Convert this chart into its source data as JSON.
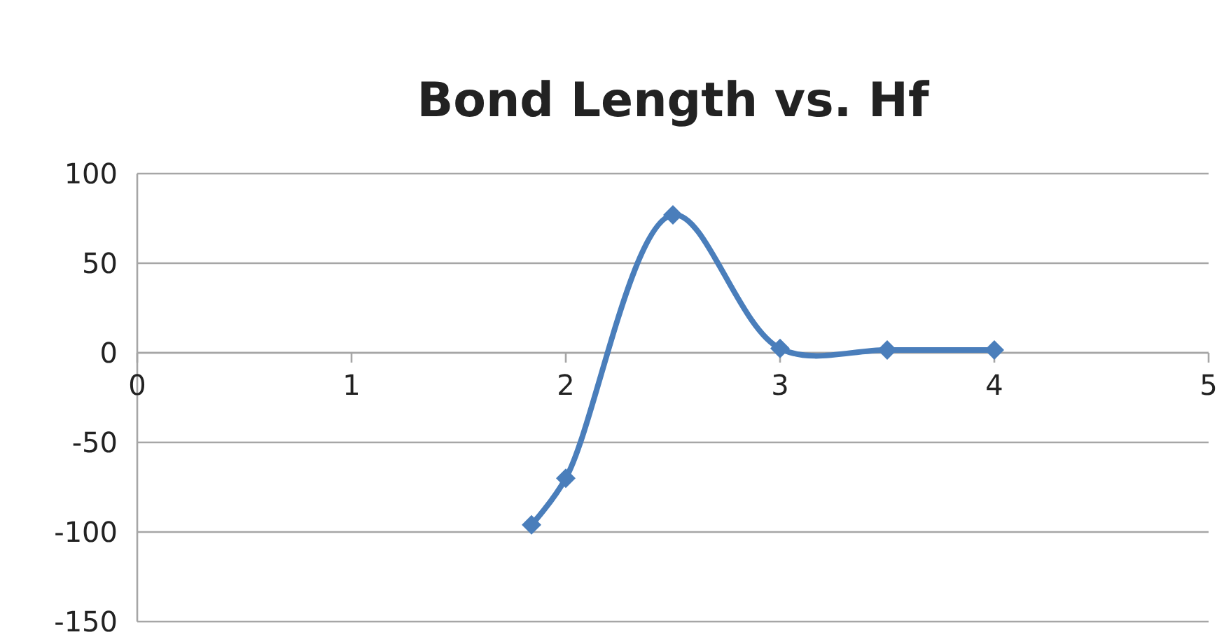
{
  "chart_data": {
    "type": "line",
    "title": "Bond Length vs. Hf",
    "series": [
      {
        "color": "#4a7ebb",
        "x": [
          1.84,
          2.0,
          2.5,
          3.0,
          3.5,
          4.0
        ],
        "values": [
          -96,
          -70,
          77,
          2.4,
          1.6,
          1.6
        ]
      }
    ],
    "xlim": [
      0,
      5
    ],
    "xticks": [
      0,
      1,
      2,
      3,
      4,
      5
    ],
    "ylim": [
      -150,
      100
    ],
    "yticks": [
      -150,
      -100,
      -50,
      0,
      50,
      100
    ],
    "grid": "y",
    "marker": "diamond",
    "line_style": "solid"
  }
}
